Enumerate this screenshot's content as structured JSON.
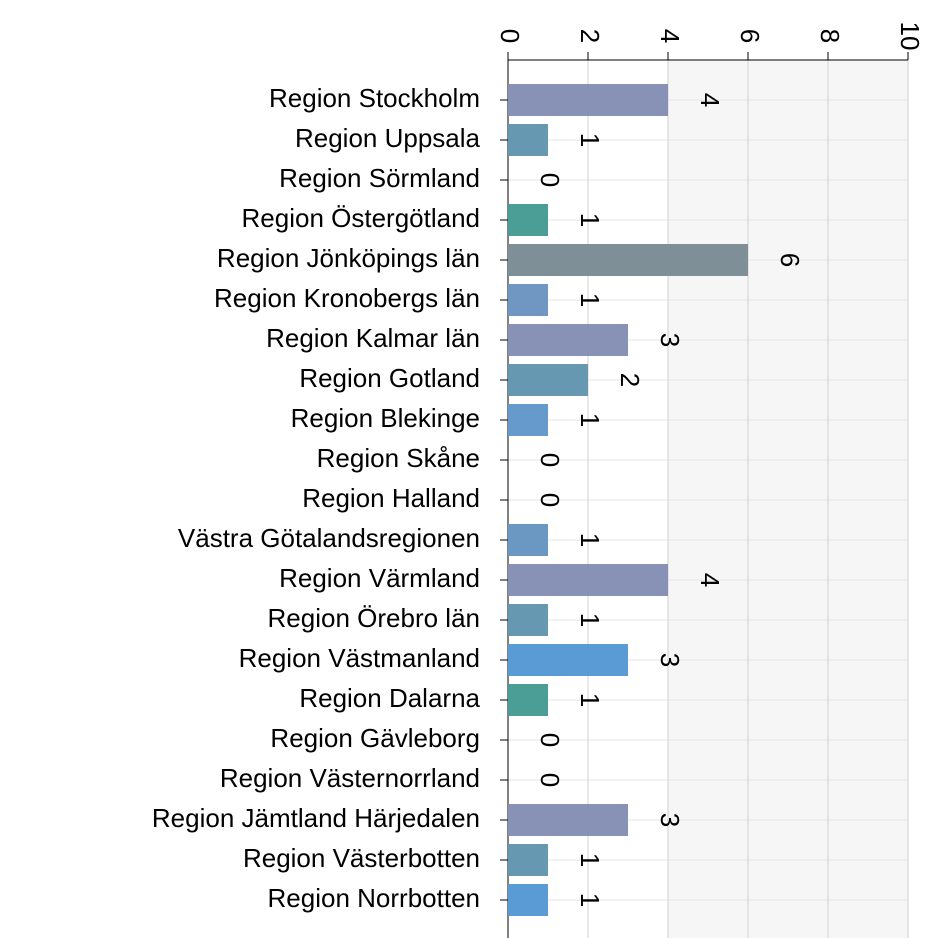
{
  "chart_data": {
    "type": "barh",
    "categories": [
      "Region Stockholm",
      "Region Uppsala",
      "Region Sörmland",
      "Region Östergötland",
      "Region Jönköpings län",
      "Region Kronobergs län",
      "Region Kalmar län",
      "Region Gotland",
      "Region Blekinge",
      "Region Skåne",
      "Region Halland",
      "Västra Götalandsregionen",
      "Region Värmland",
      "Region Örebro län",
      "Region Västmanland",
      "Region Dalarna",
      "Region Gävleborg",
      "Region Västernorrland",
      "Region Jämtland Härjedalen",
      "Region Västerbotten",
      "Region Norrbotten"
    ],
    "values": [
      4,
      1,
      0,
      1,
      6,
      1,
      3,
      2,
      1,
      0,
      0,
      1,
      4,
      1,
      3,
      1,
      0,
      0,
      3,
      1,
      1
    ],
    "colors": [
      "#8892b6",
      "#6699b1",
      "#6699b1",
      "#4a9e95",
      "#7f8f98",
      "#6f97c2",
      "#8892b6",
      "#6699b1",
      "#6699cc",
      "#6699cc",
      "#6699cc",
      "#6a98c2",
      "#8892b6",
      "#6699b1",
      "#5b9bd5",
      "#4a9e95",
      "#7f8f98",
      "#7f8f98",
      "#8892b6",
      "#6699b1",
      "#5b9bd5"
    ],
    "xlim": [
      0,
      10
    ],
    "xticks": [
      0,
      2,
      4,
      6,
      8,
      10
    ],
    "grid": true
  }
}
